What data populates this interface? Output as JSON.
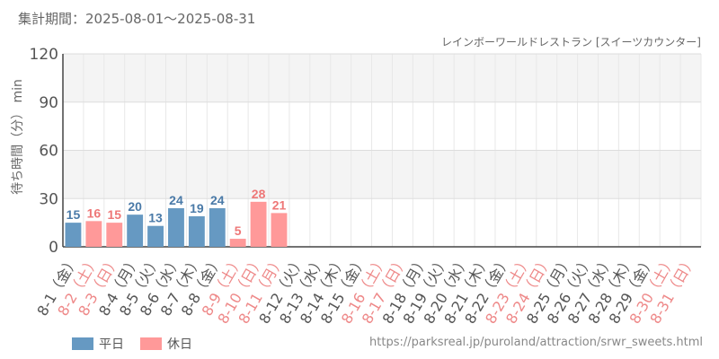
{
  "header": {
    "period": "集計期間：2025-08-01～2025-08-31",
    "subtitle": "レインボーワールドレストラン [スイーツカウンター]"
  },
  "legend": {
    "weekday": "平日",
    "holiday": "休日"
  },
  "url": "https://parksreal.jp/puroland/attraction/srwr_sweets.html",
  "colors": {
    "weekday": "#6699c2",
    "holiday": "#ff9999",
    "weekday_label": "#4a7aa8",
    "holiday_label": "#ee7777"
  },
  "chart_data": {
    "type": "bar",
    "ylabel": "待ち時間（分） min",
    "ylim": [
      0,
      120
    ],
    "yticks": [
      0,
      30,
      60,
      90,
      120
    ],
    "grid": true,
    "legend_position": "bottom-left",
    "categories": [
      "8-1（金）",
      "8-2（土）",
      "8-3（日）",
      "8-4（月）",
      "8-5（火）",
      "8-6（水）",
      "8-7（木）",
      "8-8（金）",
      "8-9（土）",
      "8-10（日）",
      "8-11（月）",
      "8-12（火）",
      "8-13（水）",
      "8-14（木）",
      "8-15（金）",
      "8-16（土）",
      "8-17（日）",
      "8-18（月）",
      "8-19（火）",
      "8-20（水）",
      "8-21（木）",
      "8-22（金）",
      "8-23（土）",
      "8-24（日）",
      "8-25（月）",
      "8-26（火）",
      "8-27（水）",
      "8-28（木）",
      "8-29（金）",
      "8-30（土）",
      "8-31（日）"
    ],
    "day_type": [
      "weekday",
      "holiday",
      "holiday",
      "weekday",
      "weekday",
      "weekday",
      "weekday",
      "weekday",
      "holiday",
      "holiday",
      "holiday",
      "weekday",
      "weekday",
      "weekday",
      "weekday",
      "holiday",
      "holiday",
      "weekday",
      "weekday",
      "weekday",
      "weekday",
      "weekday",
      "holiday",
      "holiday",
      "weekday",
      "weekday",
      "weekday",
      "weekday",
      "weekday",
      "holiday",
      "holiday"
    ],
    "values": [
      15,
      16,
      15,
      20,
      13,
      24,
      19,
      24,
      5,
      28,
      21,
      0,
      0,
      0,
      0,
      0,
      0,
      0,
      0,
      0,
      0,
      0,
      0,
      0,
      0,
      0,
      0,
      0,
      0,
      0,
      0
    ],
    "data_labels": [
      "15",
      "16",
      "15",
      "20",
      "13",
      "24",
      "19",
      "24",
      "5",
      "28",
      "21",
      "",
      "",
      "",
      "",
      "",
      "",
      "",
      "",
      "",
      "",
      "",
      "",
      "",
      "",
      "",
      "",
      "",
      "",
      "",
      ""
    ]
  }
}
